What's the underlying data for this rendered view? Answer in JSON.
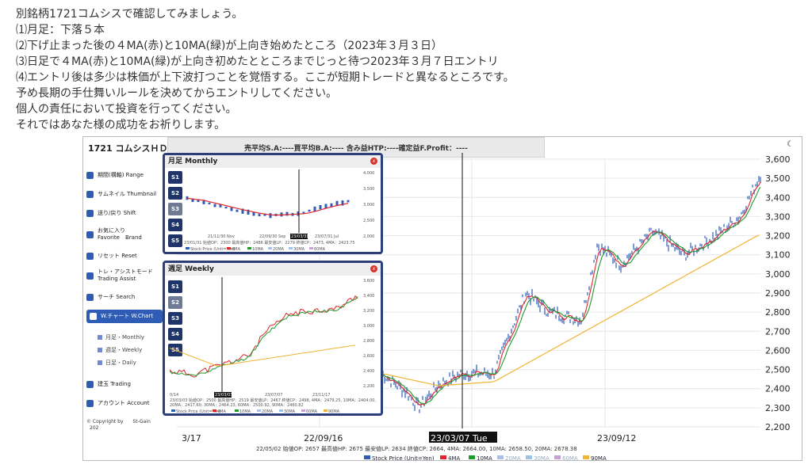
{
  "intro": {
    "lines": [
      "別銘柄1721コムシスで確認してみましょう。",
      "⑴月足：下落５本",
      "⑵下げ止まった後の４MA(赤)と10MA(緑)が上向き始めたところ（2023年３月３日）",
      "⑶日足で４MA(赤)と10MA(緑)が上向き初めたとところまでじっと待つ2023年３月７日エントリ",
      "⑷エントリ後は多少は株価が上下波打つことを覚悟する。ここが短期トレードと異なるところです。",
      "予め長期の手仕舞いルールを決めてからエントリしてください。",
      "個人の責任において投資を行ってください。",
      "それではあなた様の成功をお祈りします。"
    ]
  },
  "app": {
    "brand": "1721 コムシスＨＤ",
    "topbar": "売平均S.A:----買平均B.A:---- 含み益HTP:----確定益F.Profit：----",
    "moon_icon": "☾"
  },
  "sidebar": {
    "items": [
      {
        "label": "期間(構軸) Range"
      },
      {
        "label": "サムネイル Thumbnail"
      },
      {
        "label": "送り/戻り Shift"
      },
      {
        "label": "お気に入り\nFavorite　Brand"
      },
      {
        "label": "リセット Reset"
      },
      {
        "label": "トレ・アシストモード\nTrading Assist"
      },
      {
        "label": "サーチ Search"
      },
      {
        "label": "W.チャート W.Chart"
      },
      {
        "label": "建玉 Trading"
      },
      {
        "label": "アカウント Account"
      }
    ],
    "subitems": [
      {
        "label": "月足・Monthly"
      },
      {
        "label": "週足・Weekly"
      },
      {
        "label": "日足・Daily"
      }
    ],
    "copyright": "© Copyright by",
    "copyright_brand": "St-Gain",
    "year_fragment": "202"
  },
  "monthly_panel": {
    "title": "月足 Monthly",
    "buttons": [
      "S1",
      "S2",
      "S3",
      "S4",
      "S5"
    ],
    "selected": "S3",
    "close": "x",
    "y_ticks": [
      "4,000",
      "3,500",
      "3,000",
      "2,500",
      "2,000"
    ],
    "x_labels": [
      "21/11/30 Nov",
      "22/09/30 Sep",
      "23/03/31",
      "23/07/31 Jul"
    ],
    "info": "23/01/31 始値OP：2300 最高値HP：2486 最安値LP：2279 終値CP：2473, 4MA：2423.75",
    "legend": [
      "Stock Price (Unit=Yen)",
      "4MA",
      "10MA",
      "20MA",
      "30MA",
      "60MA"
    ]
  },
  "weekly_panel": {
    "title": "週足 Weekly",
    "buttons": [
      "S1",
      "S2",
      "S3",
      "S4",
      "S5"
    ],
    "selected": "S2",
    "close": "x",
    "y_ticks": [
      "3,600",
      "3,400",
      "3,200",
      "3,000",
      "2,800",
      "2,600",
      "2,400",
      "2,200"
    ],
    "x_labels": [
      "0/14",
      "23/03/03",
      "23/07/07",
      "23/11/17"
    ],
    "info1": "23/03/03 始値OP：2500 最高値HP：2519 最安値LP：2467 終値CP：2498, 4MA：2479.25, 10MA：2404.00,",
    "info2": "20MA：2417.60, 30MA：2464.23, 60MA：2500.92, 90MA：2460.82",
    "legend": [
      "Stock Price (Unit=Yen)",
      "4MA",
      "10MA",
      "20MA",
      "30MA",
      "60MA",
      "90MA"
    ]
  },
  "main_chart": {
    "y_ticks": [
      "3,600",
      "3,500",
      "3,400",
      "3,300",
      "3,200",
      "3,100",
      "3,000",
      "2,900",
      "2,800",
      "2,700",
      "2,600",
      "2,500",
      "2,400",
      "2,300",
      "2,200"
    ],
    "x_labels": [
      "3/17",
      "22/09/16",
      "23/09/12"
    ],
    "cursor_label": "23/03/07 Tue",
    "info": "22/05/02 始値OP: 2657 最高値HP: 2675 最安値LP: 2634 終値CP: 2664, 4MA: 2664.00, 10MA: 2658.50, 20MA: 2678.38",
    "legend": [
      "Stock Price (Unit=Yen)",
      "4MA",
      "10MA",
      "20MA",
      "30MA",
      "60MA",
      "90MA"
    ]
  },
  "colors": {
    "ma4": "#e0252d",
    "ma10": "#1f9a2c",
    "ma20": "#a9c0e8",
    "ma30": "#9fc3e6",
    "ma60": "#c8a0d8",
    "ma90": "#f0b436",
    "price": "#2f5cb5"
  }
}
